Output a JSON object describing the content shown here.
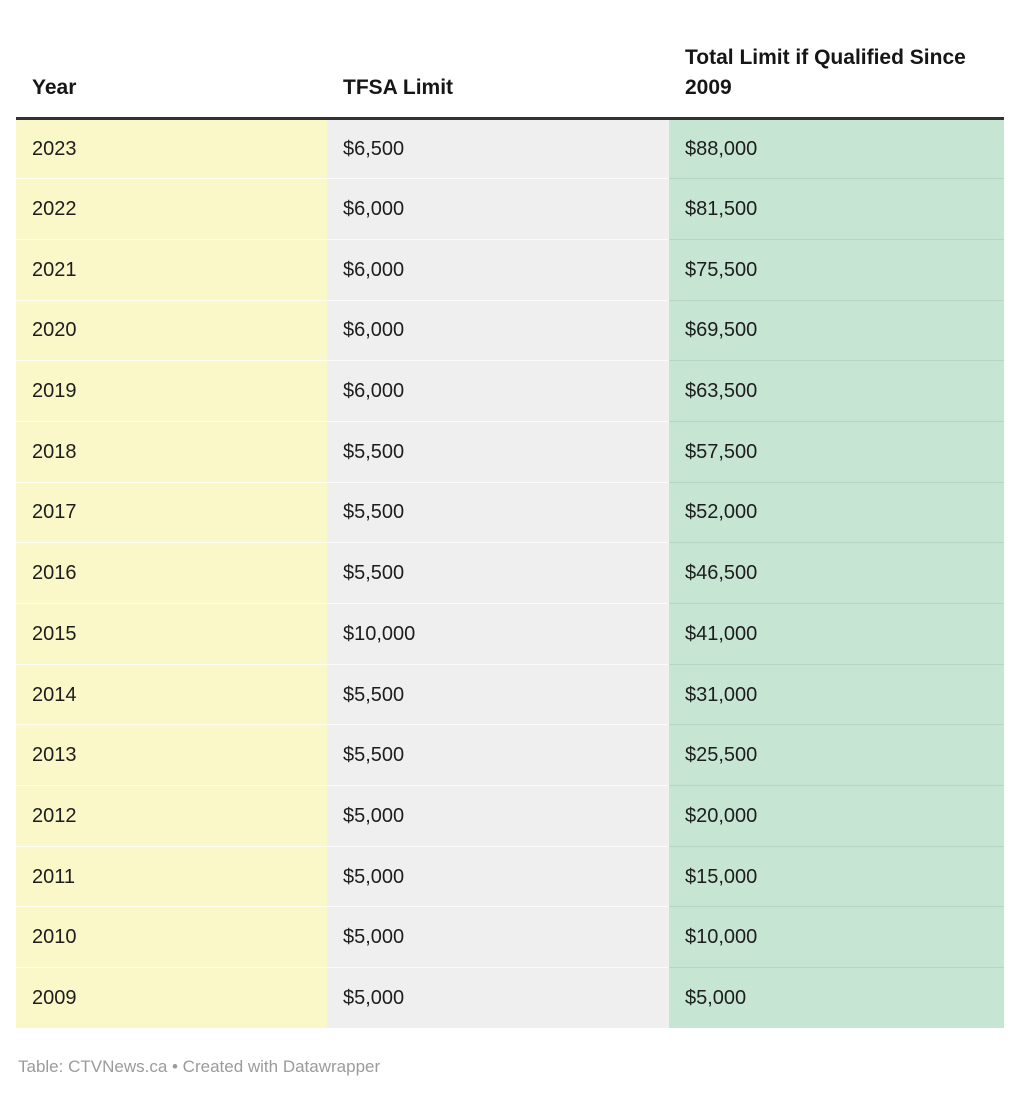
{
  "chart_data": {
    "type": "table",
    "title": "",
    "columns": [
      "Year",
      "TFSA Limit",
      "Total Limit if Qualified Since 2009"
    ],
    "rows": [
      [
        "2023",
        "$6,500",
        "$88,000"
      ],
      [
        "2022",
        "$6,000",
        "$81,500"
      ],
      [
        "2021",
        "$6,000",
        "$75,500"
      ],
      [
        "2020",
        "$6,000",
        "$69,500"
      ],
      [
        "2019",
        "$6,000",
        "$63,500"
      ],
      [
        "2018",
        "$5,500",
        "$57,500"
      ],
      [
        "2017",
        "$5,500",
        "$52,000"
      ],
      [
        "2016",
        "$5,500",
        "$46,500"
      ],
      [
        "2015",
        "$10,000",
        "$41,000"
      ],
      [
        "2014",
        "$5,500",
        "$31,000"
      ],
      [
        "2013",
        "$5,500",
        "$25,500"
      ],
      [
        "2012",
        "$5,000",
        "$20,000"
      ],
      [
        "2011",
        "$5,000",
        "$15,000"
      ],
      [
        "2010",
        "$5,000",
        "$10,000"
      ],
      [
        "2009",
        "$5,000",
        "$5,000"
      ]
    ],
    "layout": {
      "column_colors": [
        "#faf7c8",
        "#efefef",
        "#c6e5d3"
      ],
      "header_border_color": "#333333",
      "header_text_color": "#161616",
      "cell_text_color": "#1d1d1d",
      "footer_text_color": "#9b9b9b"
    }
  },
  "footer": {
    "text": "Table: CTVNews.ca • Created with Datawrapper"
  }
}
